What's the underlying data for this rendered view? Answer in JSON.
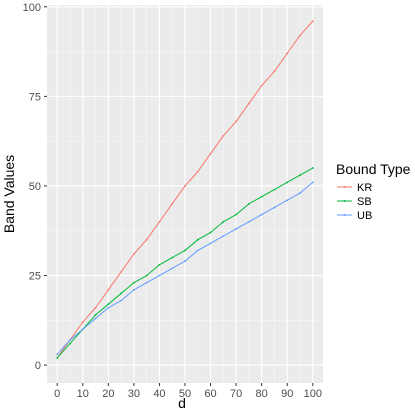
{
  "chart_data": {
    "type": "line",
    "xlabel": "d",
    "ylabel": "Band Values",
    "xlim": [
      -4,
      104
    ],
    "ylim": [
      -5,
      100.5
    ],
    "x_ticks": [
      0,
      10,
      20,
      30,
      40,
      50,
      60,
      70,
      80,
      90,
      100
    ],
    "y_ticks": [
      0,
      25,
      50,
      75,
      100
    ],
    "grid": true,
    "legend": {
      "title": "Bound Type",
      "position": "right"
    },
    "x": [
      0,
      5,
      10,
      15,
      20,
      25,
      30,
      35,
      40,
      45,
      50,
      55,
      60,
      65,
      70,
      75,
      80,
      85,
      90,
      95,
      100
    ],
    "series": [
      {
        "name": "KR",
        "color": "#F8766D",
        "values": [
          2,
          7,
          12,
          16,
          21,
          26,
          31,
          35,
          40,
          45,
          50,
          54,
          59,
          64,
          68,
          73,
          78,
          82,
          87,
          92,
          96
        ]
      },
      {
        "name": "SB",
        "color": "#00BA38",
        "values": [
          2,
          6,
          10,
          14,
          17,
          20,
          23,
          25,
          28,
          30,
          32,
          35,
          37,
          40,
          42,
          45,
          47,
          49,
          51,
          53,
          55
        ]
      },
      {
        "name": "UB",
        "color": "#619CFF",
        "values": [
          3,
          7,
          10,
          13,
          16,
          18,
          21,
          23,
          25,
          27,
          29,
          32,
          34,
          36,
          38,
          40,
          42,
          44,
          46,
          48,
          51
        ]
      }
    ]
  }
}
